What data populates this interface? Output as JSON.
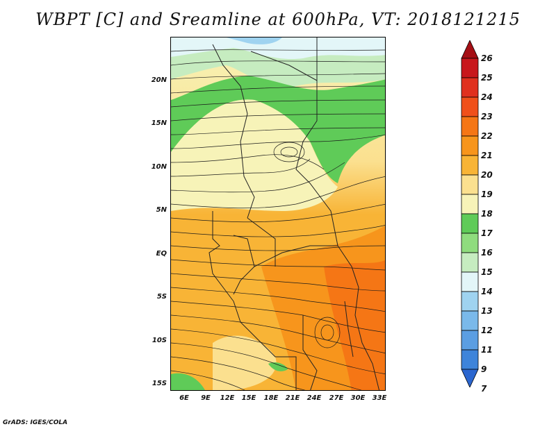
{
  "title": "WBPT [C] and Sreamline at 600hPa, VT: 2018121215",
  "credit": "GrADS: IGES/COLA",
  "map": {
    "lat_labels": [
      "20N",
      "15N",
      "10N",
      "5N",
      "EQ",
      "5S",
      "10S",
      "15S"
    ],
    "lon_labels": [
      "6E",
      "9E",
      "12E",
      "15E",
      "18E",
      "21E",
      "24E",
      "27E",
      "30E",
      "33E"
    ]
  },
  "colorbar": {
    "labels": [
      "26",
      "25",
      "24",
      "23",
      "22",
      "21",
      "20",
      "19",
      "18",
      "17",
      "16",
      "15",
      "14",
      "13",
      "12",
      "11",
      "9",
      "7"
    ],
    "colors": [
      "#a50f15",
      "#c8171c",
      "#e0301e",
      "#f0501a",
      "#f57615",
      "#f7951c",
      "#f8b436",
      "#fbe08f",
      "#f7f3b8",
      "#5fcb58",
      "#8fdc7e",
      "#c6ecc0",
      "#e3f6f8",
      "#9fd3f0",
      "#7ab9ea",
      "#5b9ee2",
      "#3e84da",
      "#2b66cf"
    ]
  }
}
